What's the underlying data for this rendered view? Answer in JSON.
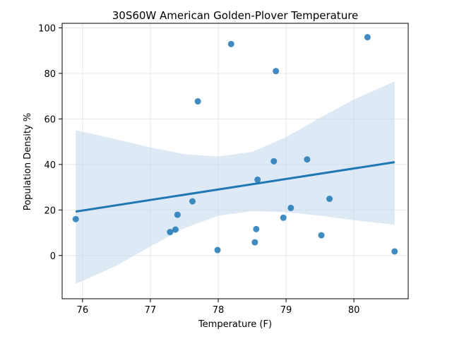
{
  "chart_data": {
    "type": "scatter",
    "title": "30S60W American Golden-Plover Temperature",
    "xlabel": "Temperature (F)",
    "ylabel": "Population Density %",
    "xlim": [
      75.7,
      80.8
    ],
    "ylim": [
      -19,
      102
    ],
    "xticks": [
      76,
      77,
      78,
      79,
      80
    ],
    "yticks": [
      0,
      20,
      40,
      60,
      80,
      100
    ],
    "grid": true,
    "point_color": "#1f77b4",
    "line_color": "#1f77b4",
    "band_color": "#c6dbef",
    "points": [
      {
        "x": 75.9,
        "y": 16.0
      },
      {
        "x": 77.29,
        "y": 10.3
      },
      {
        "x": 77.37,
        "y": 11.4
      },
      {
        "x": 77.4,
        "y": 17.9
      },
      {
        "x": 77.62,
        "y": 23.8
      },
      {
        "x": 77.7,
        "y": 67.7
      },
      {
        "x": 77.99,
        "y": 2.4
      },
      {
        "x": 78.19,
        "y": 92.9
      },
      {
        "x": 78.54,
        "y": 5.8
      },
      {
        "x": 78.56,
        "y": 11.6
      },
      {
        "x": 78.58,
        "y": 33.3
      },
      {
        "x": 78.82,
        "y": 41.4
      },
      {
        "x": 78.85,
        "y": 81.0
      },
      {
        "x": 78.96,
        "y": 16.6
      },
      {
        "x": 79.07,
        "y": 20.9
      },
      {
        "x": 79.31,
        "y": 42.2
      },
      {
        "x": 79.52,
        "y": 8.9
      },
      {
        "x": 79.64,
        "y": 24.9
      },
      {
        "x": 80.2,
        "y": 95.9
      },
      {
        "x": 80.6,
        "y": 1.8
      }
    ],
    "regression": {
      "x": [
        75.9,
        80.6
      ],
      "y": [
        19.3,
        41.0
      ]
    },
    "confidence_band": {
      "x": [
        75.9,
        76.5,
        77.0,
        77.5,
        78.0,
        78.5,
        79.0,
        79.5,
        80.0,
        80.6
      ],
      "upper": [
        55.0,
        51.0,
        47.5,
        44.5,
        43.5,
        45.5,
        52.0,
        60.5,
        68.5,
        76.5
      ],
      "lower": [
        -12.5,
        -4.5,
        4.0,
        12.0,
        17.5,
        19.5,
        19.0,
        17.5,
        15.5,
        13.5
      ]
    }
  }
}
